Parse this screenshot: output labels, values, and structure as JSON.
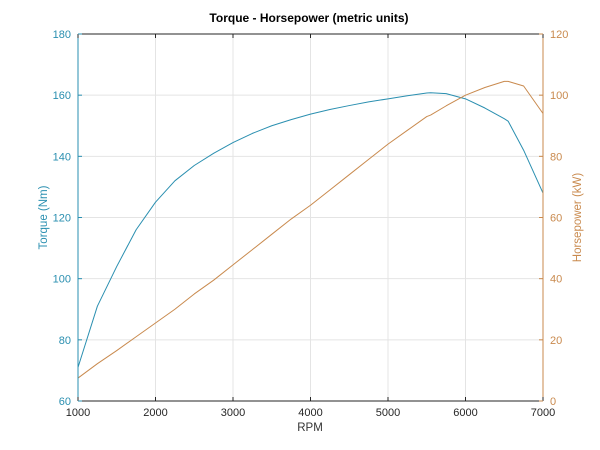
{
  "chart_data": {
    "type": "line",
    "title": "Torque - Horsepower (metric units)",
    "xlabel": "RPM",
    "ylabel_left": "Torque (Nm)",
    "ylabel_right": "Horsepower (kW)",
    "xlim": [
      1000,
      7000
    ],
    "ylim_left": [
      60,
      180
    ],
    "ylim_right": [
      0,
      120
    ],
    "x_ticks": [
      1000,
      2000,
      3000,
      4000,
      5000,
      6000,
      7000
    ],
    "y_ticks_left": [
      60,
      80,
      100,
      120,
      140,
      160,
      180
    ],
    "y_ticks_right": [
      0,
      20,
      40,
      60,
      80,
      100,
      120
    ],
    "grid": true,
    "x": [
      1000,
      1250,
      1500,
      1750,
      2000,
      2250,
      2500,
      2750,
      3000,
      3250,
      3500,
      3750,
      4000,
      4250,
      4500,
      4750,
      5000,
      5250,
      5500,
      5550,
      5750,
      6000,
      6250,
      6500,
      6550,
      6750,
      7000
    ],
    "series": [
      {
        "name": "Torque (Nm)",
        "axis": "left",
        "color": "#2a8fb0",
        "values": [
          71,
          91,
          104,
          116,
          125,
          132,
          137,
          141,
          144.5,
          147.5,
          150,
          152,
          153.8,
          155.3,
          156.6,
          157.8,
          158.8,
          159.8,
          160.7,
          160.8,
          160.5,
          158.8,
          155.8,
          152.3,
          151.5,
          142,
          128
        ]
      },
      {
        "name": "Horsepower (kW)",
        "axis": "right",
        "color": "#c98a4e",
        "values": [
          7.5,
          12.2,
          16.5,
          21,
          25.5,
          30,
          35,
          39.5,
          44.5,
          49.5,
          54.5,
          59.5,
          64,
          69,
          74,
          79,
          84,
          88.5,
          93,
          93.5,
          96.5,
          100,
          102.5,
          104.5,
          104.5,
          103,
          94
        ]
      }
    ]
  }
}
